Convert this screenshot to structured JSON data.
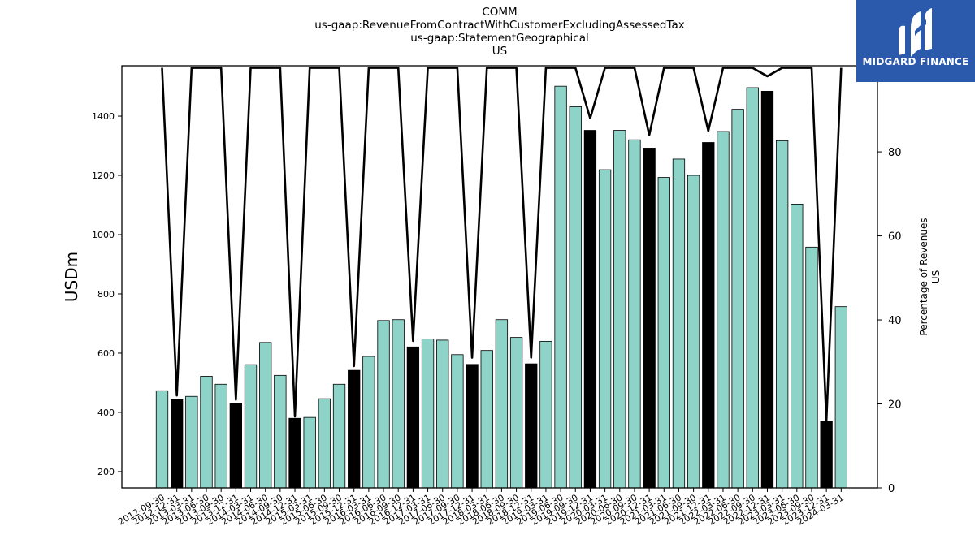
{
  "logo": {
    "text": "MIDGARD FINANCE",
    "icon": "midgard-m-logo-icon",
    "background": "#2b5aad"
  },
  "chart_data": {
    "type": "bar",
    "title_lines": [
      "COMM",
      "us-gaap:RevenueFromContractWithCustomerExcludingAssessedTax",
      "us-gaap:StatementGeographical",
      "US"
    ],
    "ylabel": "USDm",
    "y2label_lines": [
      "Percentage of Revenues",
      "US"
    ],
    "ylim": [
      145,
      1570
    ],
    "y2lim": [
      0,
      100.5
    ],
    "yticks": [
      200,
      400,
      600,
      800,
      1000,
      1200,
      1400
    ],
    "y2ticks": [
      0,
      20,
      40,
      60,
      80,
      100
    ],
    "grid": false,
    "colors": {
      "quarter": "#8dd3c7",
      "annual": "#000000",
      "line": "#000000"
    },
    "categories": [
      "2012-09-30",
      "2012-12-31",
      "2013-03-31",
      "2013-06-30",
      "2013-09-30",
      "2013-12-31",
      "2014-03-31",
      "2014-06-30",
      "2014-09-30",
      "2014-12-31",
      "2015-03-31",
      "2015-06-30",
      "2015-09-30",
      "2015-12-31",
      "2016-03-31",
      "2016-06-30",
      "2016-09-30",
      "2016-12-31",
      "2017-03-31",
      "2017-06-30",
      "2017-09-30",
      "2017-12-31",
      "2018-03-31",
      "2018-06-30",
      "2018-09-30",
      "2018-12-31",
      "2019-03-31",
      "2019-06-30",
      "2019-09-30",
      "2019-12-31",
      "2020-03-31",
      "2020-06-30",
      "2020-09-30",
      "2020-12-31",
      "2021-03-31",
      "2021-06-30",
      "2021-09-30",
      "2021-12-31",
      "2022-03-31",
      "2022-06-30",
      "2022-09-30",
      "2022-12-31",
      "2023-03-31",
      "2023-06-30",
      "2023-09-30",
      "2023-12-31",
      "2024-03-31"
    ],
    "values": [
      473,
      443,
      454,
      522,
      495,
      429,
      561,
      636,
      525,
      380,
      383,
      446,
      495,
      542,
      589,
      710,
      713,
      621,
      648,
      644,
      595,
      562,
      609,
      713,
      653,
      564,
      640,
      1501,
      1432,
      1352,
      1219,
      1352,
      1320,
      1292,
      1193,
      1255,
      1200,
      1311,
      1348,
      1423,
      1496,
      1484,
      1317,
      1103,
      958,
      370,
      757
    ],
    "annual_flags": [
      0,
      1,
      0,
      0,
      0,
      1,
      0,
      0,
      0,
      1,
      0,
      0,
      0,
      1,
      0,
      0,
      0,
      1,
      0,
      0,
      0,
      1,
      0,
      0,
      0,
      1,
      0,
      0,
      0,
      1,
      0,
      0,
      0,
      1,
      0,
      0,
      0,
      1,
      0,
      0,
      0,
      1,
      0,
      0,
      0,
      1,
      0
    ],
    "percentage_line": [
      100,
      22,
      100,
      100,
      100,
      21,
      100,
      100,
      100,
      17,
      100,
      100,
      100,
      29,
      100,
      100,
      100,
      35,
      100,
      100,
      100,
      31,
      100,
      100,
      100,
      31,
      100,
      100,
      100,
      88,
      100,
      100,
      100,
      84,
      100,
      100,
      100,
      85,
      100,
      100,
      100,
      98,
      100,
      100,
      100,
      16,
      100
    ]
  }
}
